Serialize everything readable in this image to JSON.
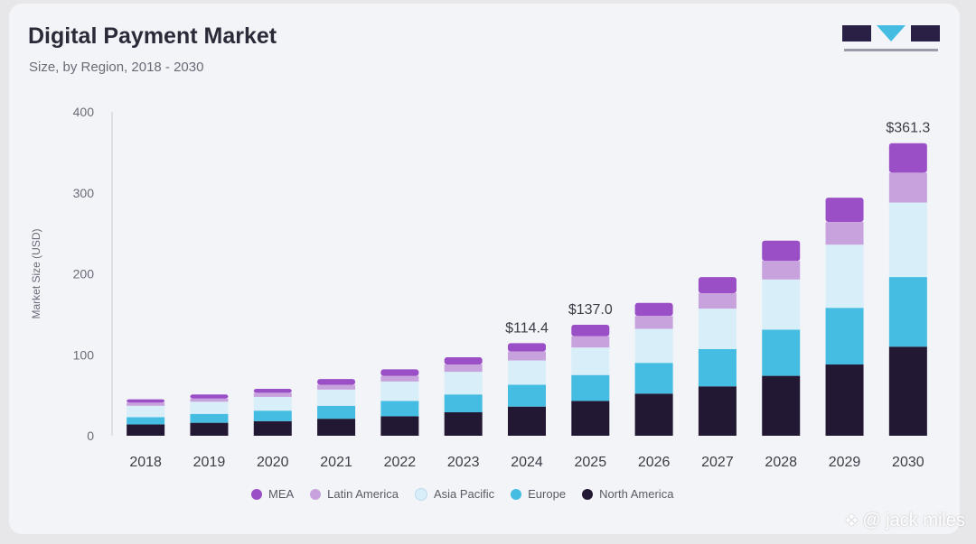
{
  "header": {
    "title": "Digital Payment Market",
    "subtitle": "Size, by Region, 2018 - 2030"
  },
  "watermark": {
    "icon": "diamond-logo-icon",
    "text": "@ jack miles"
  },
  "colors": {
    "MEA": "#9b4fc7",
    "Latin America": "#c8a2dd",
    "Asia Pacific": "#d8eef8",
    "Europe": "#45bde3",
    "North America": "#221833",
    "label": "#3d3d48",
    "axis": "#6b6b78"
  },
  "chart_data": {
    "type": "bar",
    "stacked": true,
    "title": "Digital Payment Market",
    "subtitle": "Size, by Region, 2018 - 2030",
    "xlabel": "",
    "ylabel": "Market Size (USD)",
    "ylim": [
      0,
      400
    ],
    "yticks": [
      "0",
      "100",
      "200",
      "300",
      "400"
    ],
    "grid": false,
    "legend_position": "bottom",
    "categories": [
      "2018",
      "2019",
      "2020",
      "2021",
      "2022",
      "2023",
      "2024",
      "2025",
      "2026",
      "2027",
      "2028",
      "2029",
      "2030"
    ],
    "series": [
      {
        "name": "North America",
        "values": [
          14,
          16,
          18,
          21,
          24,
          29,
          36,
          43,
          52,
          61,
          74,
          88,
          110
        ]
      },
      {
        "name": "Europe",
        "values": [
          9,
          11,
          13,
          16,
          19,
          22,
          27,
          32,
          38,
          46,
          57,
          70,
          86
        ]
      },
      {
        "name": "Asia Pacific",
        "values": [
          14,
          15,
          17,
          20,
          24,
          28,
          30,
          34,
          42,
          50,
          62,
          78,
          92
        ]
      },
      {
        "name": "Latin America",
        "values": [
          4,
          4,
          5,
          6,
          7,
          9,
          11,
          14,
          16,
          19,
          23,
          28,
          37
        ]
      },
      {
        "name": "MEA",
        "values": [
          4,
          5,
          5,
          7,
          8,
          9,
          10.4,
          14,
          16,
          20,
          25,
          30,
          36.3
        ]
      }
    ],
    "annotations": [
      {
        "category": "2024",
        "text": "$114.4"
      },
      {
        "category": "2025",
        "text": "$137.0"
      },
      {
        "category": "2030",
        "text": "$361.3"
      }
    ],
    "legend": [
      "MEA",
      "Latin America",
      "Asia Pacific",
      "Europe",
      "North America"
    ]
  }
}
